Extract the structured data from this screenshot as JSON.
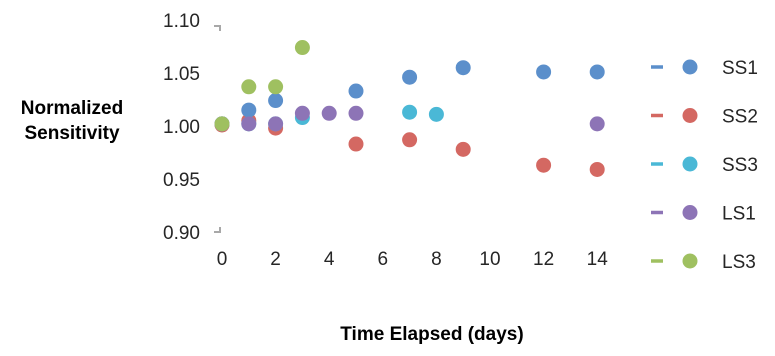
{
  "chart_data": {
    "type": "scatter",
    "xlabel": "Time Elapsed (days)",
    "ylabel": [
      "Normalized",
      "Sensitivity"
    ],
    "xlim": [
      0,
      15
    ],
    "ylim": [
      0.9,
      1.1
    ],
    "x_ticks": [
      "0",
      "2",
      "4",
      "6",
      "8",
      "10",
      "12",
      "14"
    ],
    "y_ticks": [
      "0.90",
      "0.95",
      "1.00",
      "1.05",
      "1.10"
    ],
    "grid": false,
    "legend_position": "right",
    "series": [
      {
        "name": "SS1",
        "color": "#5b8fcb",
        "points": [
          [
            0,
            1.002
          ],
          [
            1,
            1.015
          ],
          [
            2,
            1.024
          ],
          [
            5,
            1.033
          ],
          [
            7,
            1.046
          ],
          [
            9,
            1.055
          ],
          [
            12,
            1.051
          ],
          [
            14,
            1.051
          ]
        ]
      },
      {
        "name": "SS2",
        "color": "#d46862",
        "points": [
          [
            0,
            1.001
          ],
          [
            1,
            1.005
          ],
          [
            2,
            0.998
          ],
          [
            5,
            0.983
          ],
          [
            7,
            0.987
          ],
          [
            9,
            0.978
          ],
          [
            12,
            0.963
          ],
          [
            14,
            0.959
          ]
        ]
      },
      {
        "name": "SS3",
        "color": "#4ab8d6",
        "points": [
          [
            0,
            1.002
          ],
          [
            1,
            1.002
          ],
          [
            2,
            1.002
          ],
          [
            3,
            1.008
          ],
          [
            7,
            1.013
          ],
          [
            8,
            1.011
          ]
        ]
      },
      {
        "name": "LS1",
        "color": "#8d74b6",
        "points": [
          [
            0,
            1.002
          ],
          [
            1,
            1.002
          ],
          [
            2,
            1.002
          ],
          [
            3,
            1.012
          ],
          [
            4,
            1.012
          ],
          [
            5,
            1.012
          ],
          [
            14,
            1.002
          ]
        ]
      },
      {
        "name": "LS3",
        "color": "#9fc060",
        "points": [
          [
            0,
            1.002
          ],
          [
            1,
            1.037
          ],
          [
            2,
            1.037
          ],
          [
            3,
            1.074
          ]
        ]
      }
    ]
  }
}
